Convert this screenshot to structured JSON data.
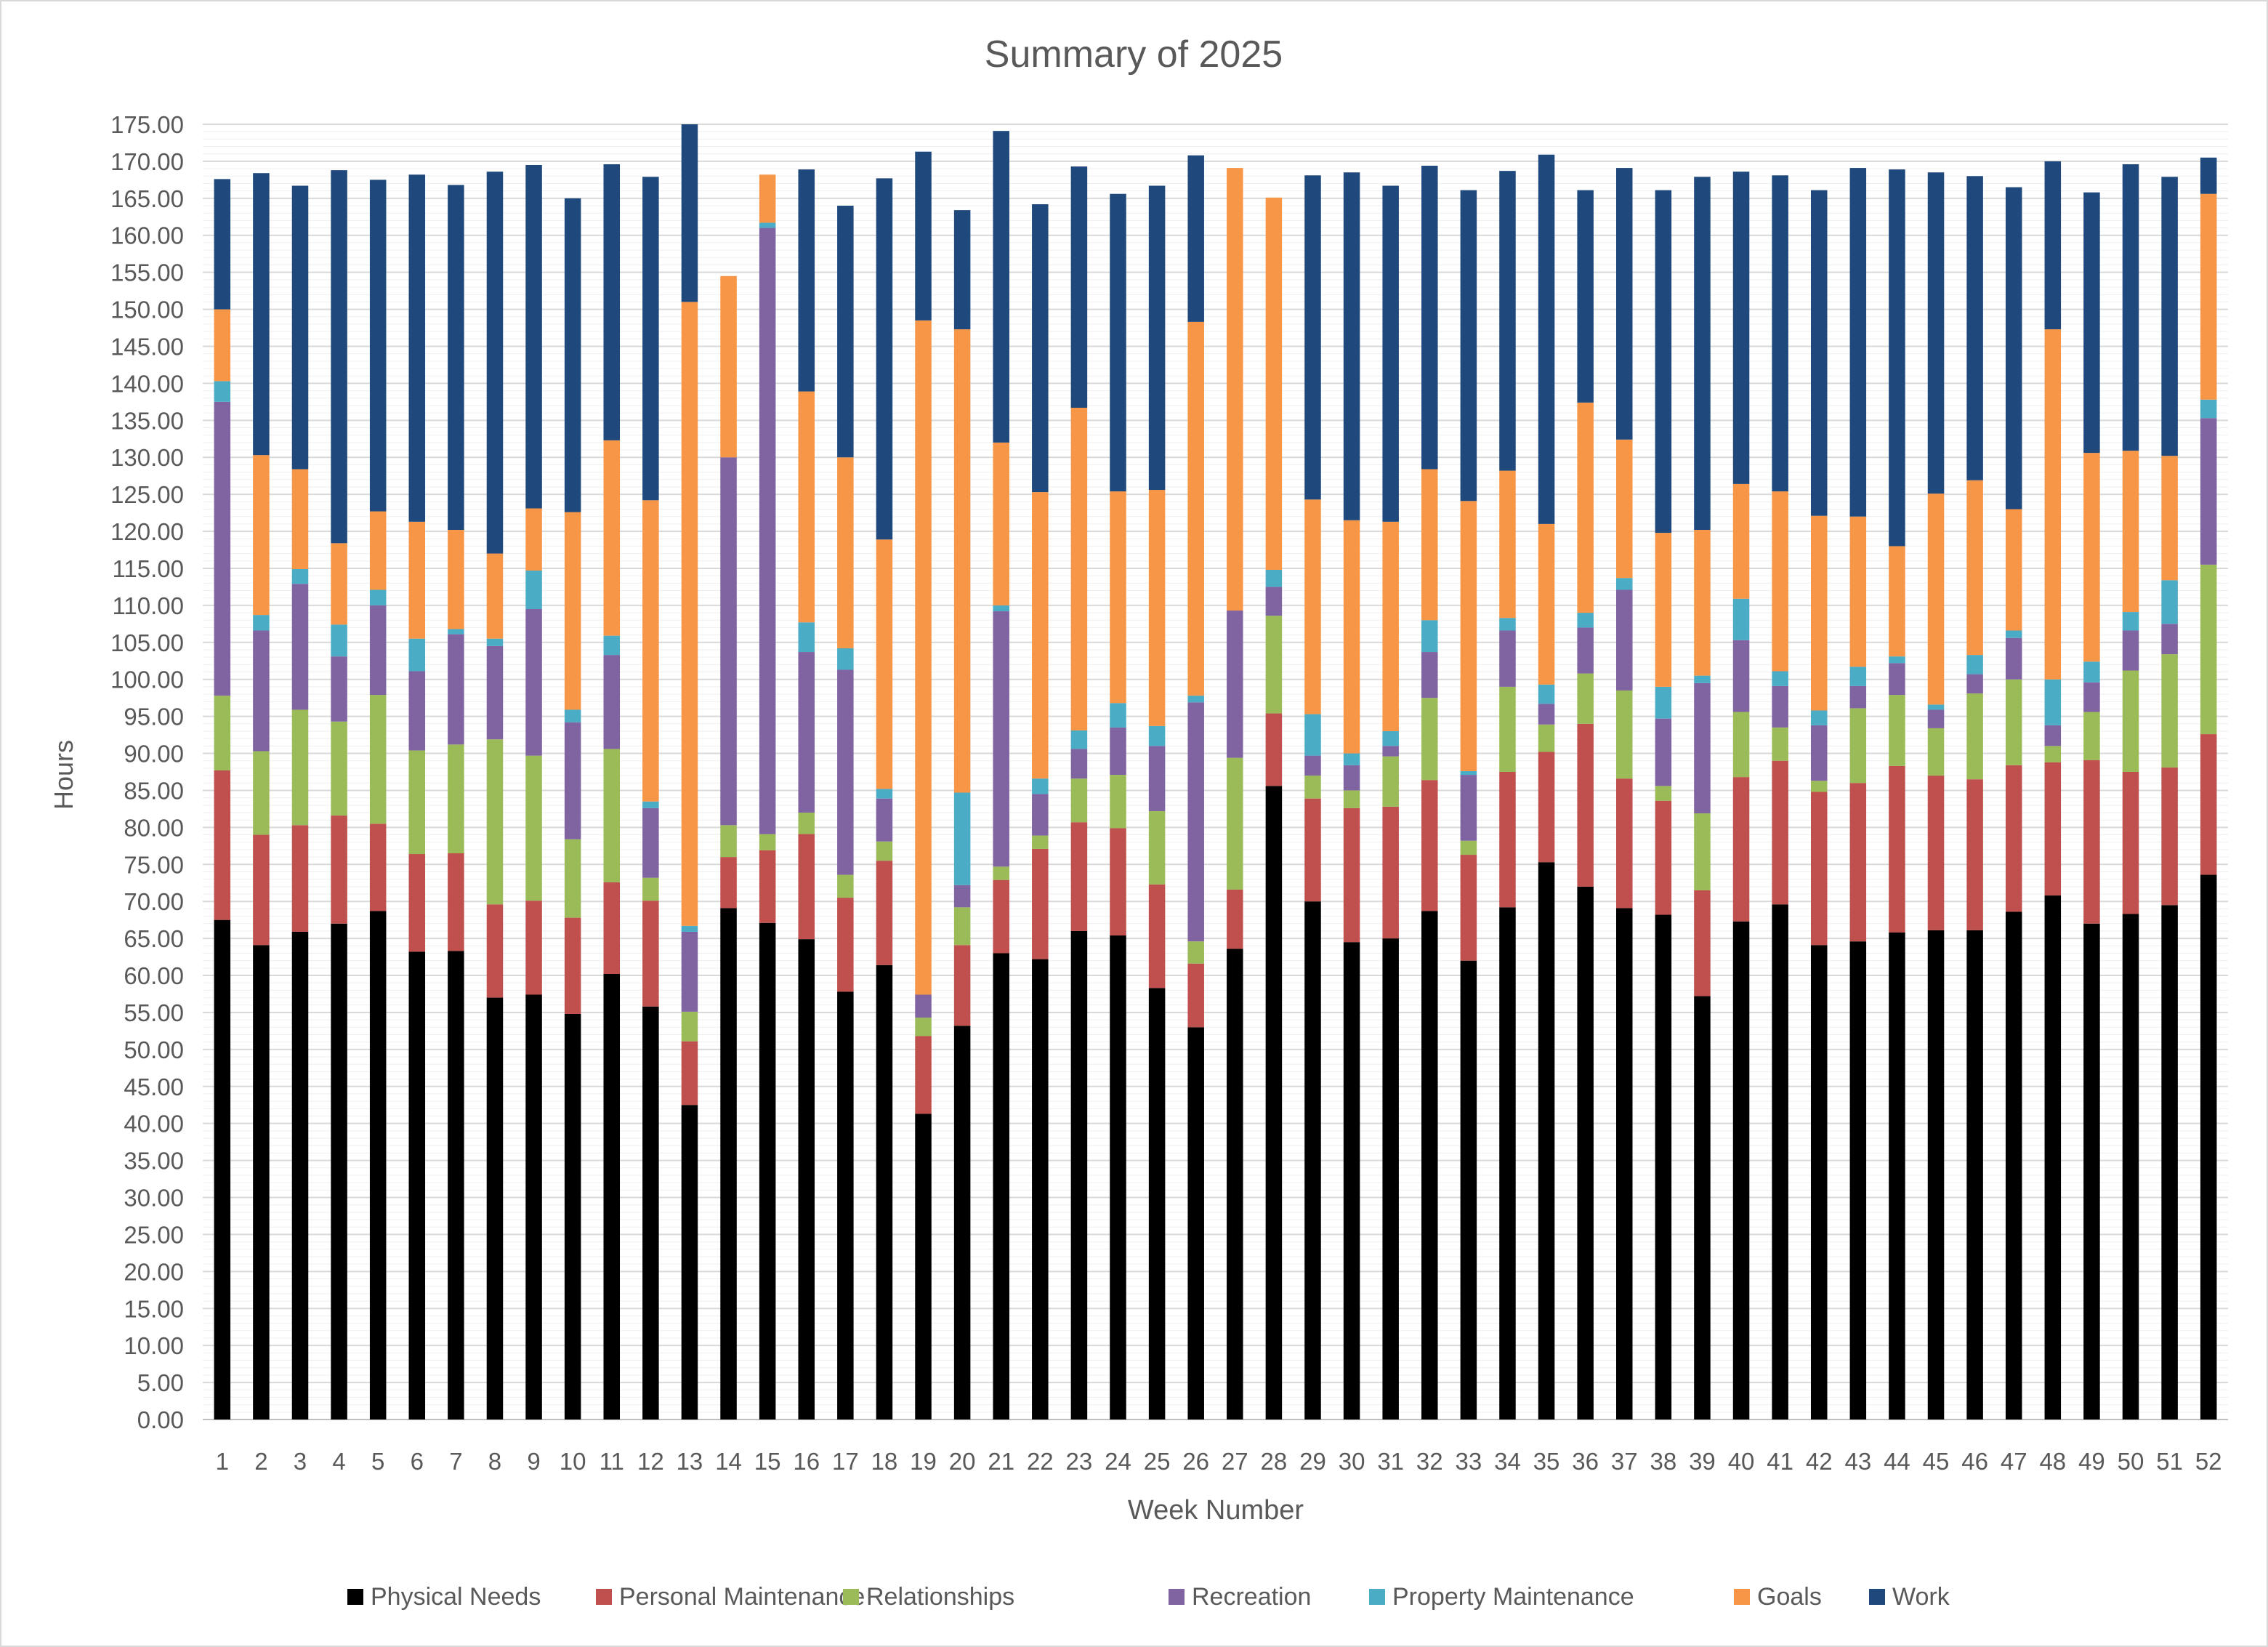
{
  "chart_data": {
    "type": "bar",
    "stacked": true,
    "title": "Summary of 2025",
    "xlabel": "Week Number",
    "ylabel": "Hours",
    "ylim": [
      0,
      175
    ],
    "ytick_step": 5,
    "ytick_format": "0.00",
    "grid": true,
    "legend_position": "bottom",
    "categories": [
      "1",
      "2",
      "3",
      "4",
      "5",
      "6",
      "7",
      "8",
      "9",
      "10",
      "11",
      "12",
      "13",
      "14",
      "15",
      "16",
      "17",
      "18",
      "19",
      "20",
      "21",
      "22",
      "23",
      "24",
      "25",
      "26",
      "27",
      "28",
      "29",
      "30",
      "31",
      "32",
      "33",
      "34",
      "35",
      "36",
      "37",
      "38",
      "39",
      "40",
      "41",
      "42",
      "43",
      "44",
      "45",
      "46",
      "47",
      "48",
      "49",
      "50",
      "51",
      "52"
    ],
    "series": [
      {
        "name": "Physical Needs",
        "color": "#000000",
        "values": [
          67.5,
          64.1,
          65.9,
          67.0,
          68.7,
          63.2,
          63.3,
          57.0,
          57.4,
          54.8,
          60.2,
          55.8,
          42.5,
          69.1,
          67.1,
          64.9,
          57.8,
          61.4,
          41.3,
          53.2,
          63.0,
          62.2,
          66.0,
          65.4,
          58.3,
          53.0,
          63.6,
          85.6,
          70.0,
          64.5,
          65.0,
          68.7,
          62.0,
          69.2,
          75.3,
          72.0,
          69.1,
          68.2,
          57.2,
          67.3,
          69.6,
          64.1,
          64.6,
          65.8,
          66.1,
          66.1,
          68.6,
          70.8,
          67.0,
          68.3,
          69.5,
          73.6
        ]
      },
      {
        "name": "Personal Maintenance",
        "color": "#C0504D",
        "values": [
          20.2,
          14.9,
          14.4,
          14.6,
          11.8,
          13.2,
          13.2,
          12.6,
          12.7,
          13.0,
          12.4,
          14.3,
          8.6,
          6.9,
          9.8,
          14.2,
          12.7,
          14.1,
          10.5,
          10.9,
          9.9,
          14.9,
          14.7,
          14.5,
          14.0,
          8.6,
          8.0,
          9.8,
          13.9,
          18.1,
          17.8,
          17.7,
          14.3,
          18.3,
          14.9,
          22.0,
          17.5,
          15.4,
          14.3,
          19.5,
          19.4,
          20.7,
          21.4,
          22.5,
          20.9,
          20.4,
          19.8,
          18.0,
          22.1,
          19.2,
          18.6,
          19.0
        ]
      },
      {
        "name": "Relationships",
        "color": "#9BBB59",
        "values": [
          10.1,
          11.3,
          15.6,
          12.7,
          17.4,
          14.0,
          14.7,
          22.3,
          19.6,
          10.6,
          18.0,
          3.1,
          4.0,
          4.3,
          2.2,
          2.9,
          3.1,
          2.6,
          2.5,
          5.1,
          1.8,
          1.8,
          5.9,
          7.2,
          9.9,
          3.0,
          17.8,
          13.2,
          3.1,
          2.4,
          6.8,
          11.1,
          1.9,
          11.5,
          3.7,
          6.8,
          11.9,
          2.0,
          10.4,
          8.8,
          4.5,
          1.5,
          10.1,
          9.6,
          6.4,
          11.6,
          11.6,
          2.2,
          6.5,
          13.7,
          15.3,
          22.9
        ]
      },
      {
        "name": "Recreation",
        "color": "#8064A2",
        "values": [
          39.7,
          16.3,
          17.0,
          8.8,
          12.1,
          10.7,
          14.9,
          12.6,
          19.8,
          15.8,
          12.7,
          9.4,
          10.8,
          49.7,
          81.9,
          21.7,
          27.7,
          5.8,
          3.1,
          3.0,
          34.5,
          5.6,
          4.0,
          6.4,
          8.8,
          32.3,
          19.9,
          3.9,
          2.7,
          3.4,
          1.4,
          6.2,
          8.9,
          7.6,
          2.8,
          6.2,
          13.6,
          9.1,
          17.6,
          9.7,
          5.6,
          7.5,
          3.0,
          4.3,
          2.5,
          2.6,
          5.6,
          2.8,
          4.0,
          5.4,
          4.1,
          19.8
        ]
      },
      {
        "name": "Property Maintenance",
        "color": "#4BACC6",
        "values": [
          2.8,
          2.1,
          2.0,
          4.3,
          2.1,
          4.4,
          0.7,
          1.0,
          5.2,
          1.7,
          2.6,
          0.9,
          0.8,
          0,
          0.7,
          4.0,
          2.9,
          1.3,
          0,
          12.5,
          0.8,
          2.1,
          2.5,
          3.3,
          2.7,
          0.9,
          0,
          2.3,
          5.6,
          1.6,
          2.0,
          4.3,
          0.5,
          1.7,
          2.6,
          2.0,
          1.6,
          4.3,
          1.0,
          5.6,
          2.0,
          2.0,
          2.6,
          0.9,
          0.7,
          2.6,
          1.0,
          6.2,
          2.8,
          2.5,
          5.9,
          2.5
        ]
      },
      {
        "name": "Goals",
        "color": "#F79646",
        "values": [
          9.7,
          21.6,
          13.5,
          11.0,
          10.6,
          15.8,
          13.4,
          11.5,
          8.4,
          26.7,
          26.4,
          40.7,
          84.3,
          24.5,
          6.5,
          31.2,
          25.8,
          33.7,
          91.1,
          62.6,
          22.0,
          38.7,
          43.6,
          28.6,
          31.9,
          50.5,
          59.8,
          50.3,
          29.0,
          31.5,
          28.3,
          20.4,
          36.5,
          19.9,
          21.7,
          28.4,
          18.7,
          20.8,
          19.7,
          15.5,
          24.3,
          26.3,
          20.3,
          14.9,
          28.5,
          23.6,
          16.4,
          47.3,
          28.2,
          21.8,
          16.8,
          27.8
        ]
      },
      {
        "name": "Work",
        "color": "#1F497D",
        "values": [
          17.6,
          38.1,
          38.3,
          50.4,
          44.8,
          46.9,
          46.6,
          51.6,
          46.4,
          42.4,
          37.3,
          43.7,
          24.0,
          0,
          0,
          30.0,
          34.0,
          48.8,
          22.8,
          16.1,
          42.1,
          38.9,
          32.6,
          40.2,
          41.1,
          22.5,
          0,
          0,
          43.8,
          47.0,
          45.4,
          41.0,
          42.0,
          40.5,
          49.9,
          28.7,
          36.7,
          46.3,
          47.7,
          42.2,
          42.7,
          44.0,
          47.1,
          50.9,
          43.4,
          41.1,
          43.5,
          22.7,
          35.2,
          38.7,
          37.7,
          4.9
        ]
      }
    ]
  }
}
